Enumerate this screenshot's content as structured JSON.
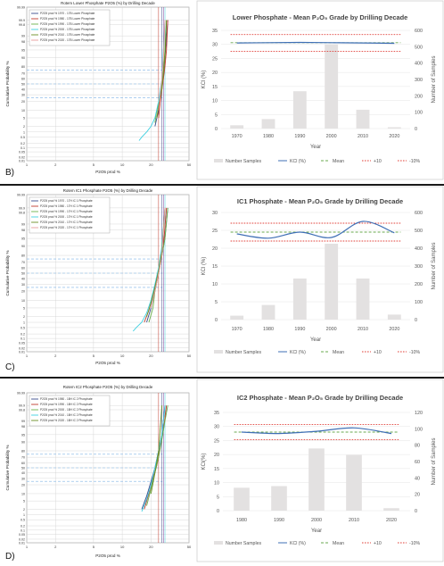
{
  "panels": [
    {
      "label": "B)",
      "prob": {
        "title": "Rotem Lower Phosphate P2O5 (%) by Drilling Decade",
        "xlabel": "P2O5 prod %",
        "ylabel": "Cumulative Probability %",
        "legend": [
          "P2O5 prod % 1970 - 17B Lower Phosphate",
          "P2O5 prod % 1980 - 17B Lower Phosphate",
          "P2O5 prod % 1990 - 17B Lower Phosphate",
          "P2O5 prod % 2000 - 17B Lower Phosphate",
          "P2O5 prod % 2010 - 17B Lower Phosphate",
          "P2O5 prod % 2020 - 17B Lower Phosphate"
        ]
      },
      "bar": {
        "title": "Lower Phosphate - Mean P₂O₅ Grade by Drilling Decade",
        "xlabel": "Year",
        "ylabel": "KCl (%)",
        "y2label": "Number of Samples",
        "legend": [
          "Number Samples",
          "KCl (%)",
          "Mean",
          "+10",
          "-10%"
        ]
      }
    },
    {
      "label": "C)",
      "prob": {
        "title": "Rotem IC1 Phosphate P2O5 (%) by Drilling Decade",
        "xlabel": "P2O5 prod %",
        "ylabel": "Cumulative Probability %",
        "legend": [
          "P2O5 prod % 1970 - 17H IC 1 Phosphate",
          "P2O5 prod % 1980 - 17H IC 1 Phosphate",
          "P2O5 prod % 1990 - 17H IC 1 Phosphate",
          "P2O5 prod % 2000 - 17H IC 1 Phosphate",
          "P2O5 prod % 2010 - 17H IC 1 Phosphate",
          "P2O5 prod % 2020 - 17H IC 1 Phosphate"
        ]
      },
      "bar": {
        "title": "IC1 Phosphate - Mean P₂O₅ Grade by Drilling Decade",
        "xlabel": "Year",
        "ylabel": "KCl (%)",
        "y2label": "Number of Samples",
        "legend": [
          "Number Samples",
          "KCl (%)",
          "Mean",
          "+10",
          "-10%"
        ]
      }
    },
    {
      "label": "D)",
      "prob": {
        "title": "Rotem IC2 Phosphate P2O5 (%) by Drilling Decade",
        "xlabel": "P2O5 prod %",
        "ylabel": "Cumulative Probability %",
        "legend": [
          "P2O5 prod % 1980 - 18H IC 2 Phosphate",
          "P2O5 prod % 1990 - 18H IC 2 Phosphate",
          "P2O5 prod % 2000 - 18H IC 2 Phosphate",
          "P2O5 prod % 2010 - 18H IC 2 Phosphate",
          "P2O5 prod % 2020 - 18H IC 2 Phosphate"
        ]
      },
      "bar": {
        "title": "IC2 Phosphate - Mean P₂O₅ Grade by Drilling Decade",
        "xlabel": "Year",
        "ylabel": "KCl(%)",
        "y2label": "Number of Samples",
        "legend": [
          "Number Samples",
          "KCl (%)",
          "Mean",
          "+10",
          "-10%"
        ]
      }
    }
  ],
  "colors": {
    "bars": "#e3e1e1",
    "kcl_line": "#3f6fb5",
    "mean_line": "#6aa84f",
    "limit_line": "#e0403a",
    "prob_series": [
      "#3a4a8c",
      "#c0392b",
      "#6ab04c",
      "#3fd0e0",
      "#6b8e23",
      "#e69b9b"
    ]
  },
  "chart_data": [
    {
      "type": "line",
      "name": "B-prob",
      "x_ticks": [
        1,
        2,
        5,
        10,
        20,
        50
      ],
      "y_ticks": [
        0.01,
        0.02,
        0.05,
        0.1,
        0.2,
        0.5,
        1,
        2,
        5,
        10,
        20,
        30,
        40,
        50,
        60,
        70,
        80,
        90,
        95,
        98,
        99,
        99.8,
        99.9,
        99.99
      ],
      "xlim": [
        1,
        50
      ],
      "ylim": [
        0.01,
        99.99
      ],
      "series": [
        {
          "x": [
            22,
            24,
            25,
            26,
            27,
            28,
            30
          ],
          "y": [
            2,
            10,
            30,
            50,
            70,
            90,
            99.9
          ]
        },
        {
          "x": [
            24,
            25,
            26,
            27,
            28,
            29,
            30
          ],
          "y": [
            5,
            20,
            40,
            60,
            80,
            95,
            99.9
          ]
        },
        {
          "x": [
            22,
            23,
            25,
            26,
            27,
            28,
            29
          ],
          "y": [
            3,
            10,
            25,
            50,
            75,
            95,
            99.9
          ]
        },
        {
          "x": [
            15,
            16,
            18,
            20,
            22,
            24,
            26,
            28
          ],
          "y": [
            0.3,
            0.5,
            1,
            2,
            5,
            20,
            60,
            99.9
          ]
        },
        {
          "x": [
            23,
            24,
            26,
            27,
            28,
            29
          ],
          "y": [
            5,
            15,
            40,
            70,
            90,
            99.9
          ]
        },
        {
          "x": [
            24,
            25,
            26,
            27,
            28
          ],
          "y": [
            10,
            30,
            60,
            90,
            99.9
          ]
        }
      ]
    },
    {
      "type": "bar",
      "name": "B-mean",
      "categories": [
        "1970",
        "1980",
        "1990",
        "2000",
        "2010",
        "2020"
      ],
      "values": [
        20,
        58,
        228,
        515,
        115,
        8
      ],
      "kcl": [
        30.5,
        30.6,
        30.7,
        30.6,
        30.5,
        30.4
      ],
      "mean": 30.6,
      "plus10": 33.5,
      "minus10": 27.5,
      "ylim": [
        0,
        35
      ],
      "y_ticks": [
        0,
        5,
        10,
        15,
        20,
        25,
        30,
        35
      ],
      "y2lim": [
        0,
        600
      ],
      "y2_ticks": [
        0,
        100,
        200,
        300,
        400,
        500,
        600
      ]
    },
    {
      "type": "line",
      "name": "C-prob",
      "x_ticks": [
        1,
        2,
        5,
        10,
        20,
        50
      ],
      "y_ticks": [
        0.01,
        0.02,
        0.05,
        0.1,
        0.2,
        0.5,
        1,
        2,
        5,
        10,
        20,
        30,
        40,
        50,
        60,
        70,
        80,
        90,
        95,
        98,
        99,
        99.8,
        99.9,
        99.99
      ],
      "xlim": [
        1,
        50
      ],
      "ylim": [
        0.01,
        99.99
      ],
      "series": [
        {
          "x": [
            18,
            20,
            22,
            24,
            26,
            28,
            30
          ],
          "y": [
            1,
            5,
            20,
            50,
            80,
            95,
            99.9
          ]
        },
        {
          "x": [
            17,
            19,
            21,
            23,
            25,
            27,
            29
          ],
          "y": [
            1,
            4,
            15,
            40,
            70,
            90,
            99.9
          ]
        },
        {
          "x": [
            19,
            21,
            22,
            24,
            26,
            28,
            30
          ],
          "y": [
            1,
            5,
            20,
            50,
            80,
            95,
            99.9
          ]
        },
        {
          "x": [
            13,
            14,
            16,
            18,
            20,
            22,
            24,
            26,
            28
          ],
          "y": [
            0.3,
            0.5,
            1,
            3,
            10,
            30,
            60,
            90,
            99.9
          ]
        },
        {
          "x": [
            18,
            20,
            22,
            24,
            26,
            28
          ],
          "y": [
            2,
            8,
            25,
            55,
            85,
            99.9
          ]
        },
        {
          "x": [
            20,
            22,
            24,
            26,
            28
          ],
          "y": [
            5,
            20,
            50,
            80,
            99.9
          ]
        }
      ]
    },
    {
      "type": "bar",
      "name": "C-mean",
      "categories": [
        "1970",
        "1980",
        "1990",
        "2000",
        "2010",
        "2020"
      ],
      "values": [
        22,
        82,
        230,
        425,
        230,
        28
      ],
      "kcl": [
        24.0,
        22.8,
        24.5,
        23.0,
        27.5,
        24.3
      ],
      "mean": 24.5,
      "plus10": 27.0,
      "minus10": 22.0,
      "ylim": [
        0,
        30
      ],
      "y_ticks": [
        0,
        5,
        10,
        15,
        20,
        25,
        30
      ],
      "y2lim": [
        0,
        600
      ],
      "y2_ticks": [
        0,
        100,
        200,
        300,
        400,
        500,
        600
      ]
    },
    {
      "type": "line",
      "name": "D-prob",
      "x_ticks": [
        1,
        2,
        5,
        10,
        20,
        50
      ],
      "y_ticks": [
        0.01,
        0.02,
        0.05,
        0.1,
        0.2,
        0.5,
        1,
        2,
        5,
        10,
        20,
        30,
        40,
        50,
        60,
        70,
        80,
        90,
        95,
        98,
        99,
        99.8,
        99.9,
        99.99
      ],
      "xlim": [
        1,
        50
      ],
      "ylim": [
        0.01,
        99.99
      ],
      "series": [
        {
          "x": [
            16,
            18,
            20,
            22,
            24,
            26,
            28
          ],
          "y": [
            2,
            8,
            25,
            50,
            80,
            95,
            99.9
          ]
        },
        {
          "x": [
            17,
            19,
            21,
            23,
            25,
            27,
            29
          ],
          "y": [
            2,
            10,
            30,
            55,
            85,
            97,
            99.9
          ]
        },
        {
          "x": [
            18,
            20,
            22,
            24,
            26,
            28,
            30
          ],
          "y": [
            3,
            15,
            40,
            70,
            92,
            99,
            99.9
          ]
        },
        {
          "x": [
            16,
            18,
            20,
            22,
            24,
            26,
            28
          ],
          "y": [
            1.5,
            6,
            20,
            50,
            80,
            95,
            99.9
          ]
        },
        {
          "x": [
            20,
            22,
            24,
            26
          ],
          "y": [
            10,
            40,
            80,
            99.9
          ]
        }
      ]
    },
    {
      "type": "bar",
      "name": "D-mean",
      "categories": [
        "1980",
        "1990",
        "2000",
        "2010",
        "2020"
      ],
      "values": [
        28,
        30,
        76,
        68,
        3
      ],
      "kcl": [
        28.0,
        27.5,
        28.3,
        29.5,
        27.5
      ],
      "mean": 28.0,
      "plus10": 30.7,
      "minus10": 25.3,
      "ylim": [
        0,
        35
      ],
      "y_ticks": [
        0,
        5,
        10,
        15,
        20,
        25,
        30,
        35
      ],
      "y2lim": [
        0,
        120
      ],
      "y2_ticks": [
        0,
        20,
        40,
        60,
        80,
        100,
        120
      ]
    }
  ]
}
